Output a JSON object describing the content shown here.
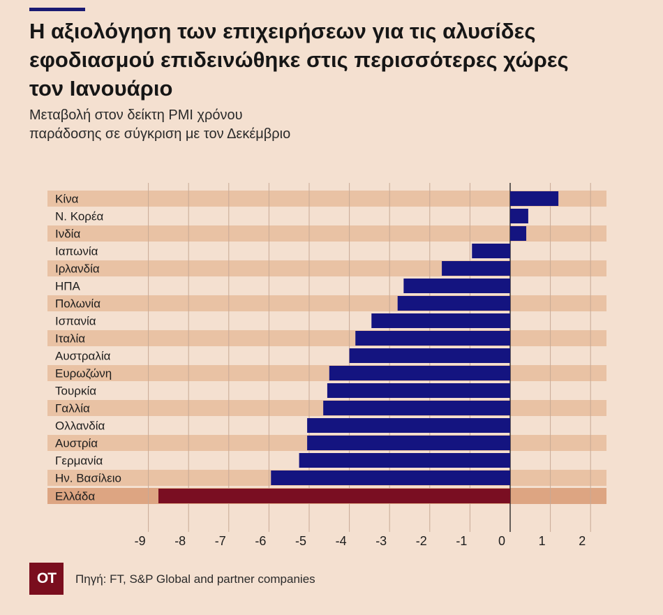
{
  "title_lines": [
    "Η αξιολόγηση των επιχειρήσεων για τις αλυσίδες",
    "εφοδιασμού επιδεινώθηκε στις περισσότερες χώρες",
    "τον Ιανουάριο"
  ],
  "subtitle_lines": [
    "Μεταβολή στον δείκτη PMI χρόνου",
    "παράδοσης σε σύγκριση με τον Δεκέμβριο"
  ],
  "logo_text": "ΟΤ",
  "source": "Πηγή: FT, S&P Global and partner companies",
  "colors": {
    "bar": "#141480",
    "highlight_bar": "#7a0e22",
    "band": "#e9c2a4",
    "highlight_band": "#dda582",
    "grid": "#c7a995",
    "zero_line": "#1a1a1a"
  },
  "chart_data": {
    "type": "bar",
    "orientation": "horizontal",
    "title": "Η αξιολόγηση των επιχειρήσεων για τις αλυσίδες εφοδιασμού επιδεινώθηκε στις περισσότερες χώρες τον Ιανουάριο",
    "subtitle": "Μεταβολή στον δείκτη PMI χρόνου παράδοσης σε σύγκριση με τον Δεκέμβριο",
    "xlabel": "",
    "ylabel": "",
    "xlim": [
      -9,
      2
    ],
    "xticks": [
      -9,
      -8,
      -7,
      -6,
      -5,
      -4,
      -3,
      -2,
      -1,
      0,
      1,
      2
    ],
    "grid": true,
    "categories": [
      "Κίνα",
      "Ν. Κορέα",
      "Ινδία",
      "Ιαπωνία",
      "Ιρλανδία",
      "ΗΠΑ",
      "Πολωνία",
      "Ισπανία",
      "Ιταλία",
      "Αυστραλία",
      "Ευρωζώνη",
      "Τουρκία",
      "Γαλλία",
      "Ολλανδία",
      "Αυστρία",
      "Γερμανία",
      "Ην. Βασίλειο",
      "Ελλάδα"
    ],
    "values": [
      1.2,
      0.45,
      0.4,
      -0.95,
      -1.7,
      -2.65,
      -2.8,
      -3.45,
      -3.85,
      -4.0,
      -4.5,
      -4.55,
      -4.65,
      -5.05,
      -5.05,
      -5.25,
      -5.95,
      -8.75
    ],
    "highlight": "Ελλάδα"
  }
}
